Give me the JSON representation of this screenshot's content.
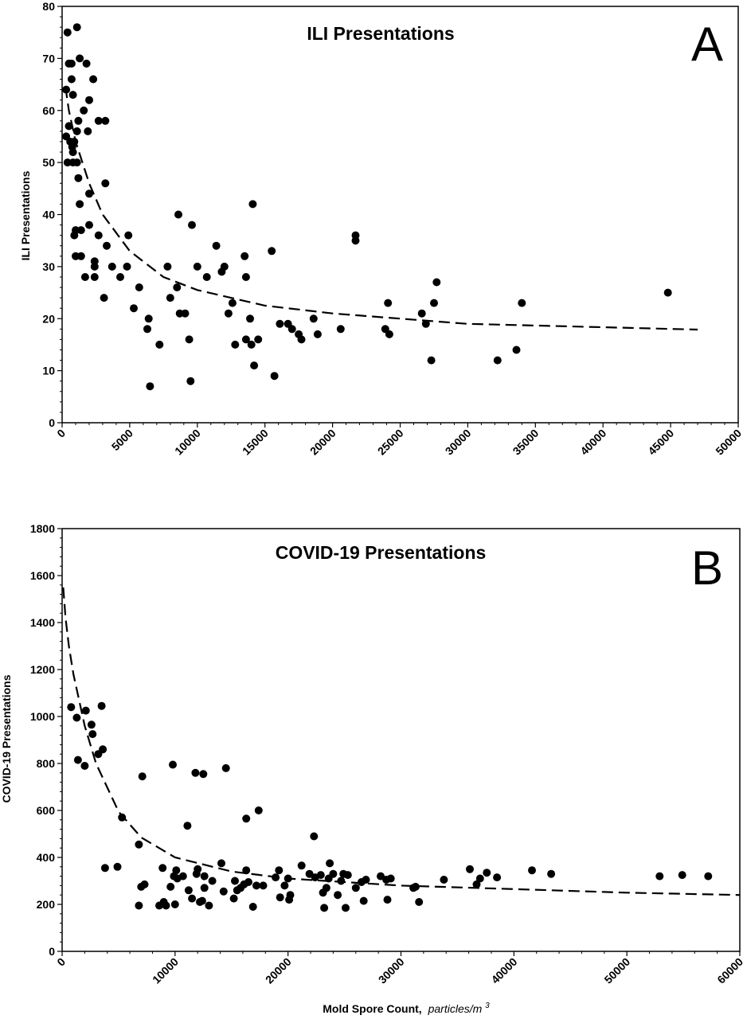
{
  "chart_data": [
    {
      "type": "scatter",
      "panel_letter": "A",
      "title": "ILI Presentations",
      "xlabel": "",
      "ylabel": "ILI Presentations",
      "xlim": [
        0,
        50000
      ],
      "ylim": [
        0,
        80
      ],
      "xticks": [
        0,
        5000,
        10000,
        15000,
        20000,
        25000,
        30000,
        35000,
        40000,
        45000,
        50000
      ],
      "yticks": [
        0,
        10,
        20,
        30,
        40,
        50,
        60,
        70,
        80
      ],
      "grid": false,
      "fit_line": {
        "style": "dashed",
        "x": [
          250,
          500,
          1000,
          2000,
          3000,
          5000,
          7500,
          10000,
          15000,
          20000,
          30000,
          47000
        ],
        "y": [
          64.5,
          60,
          54,
          46,
          40,
          33,
          28,
          25.5,
          22.5,
          21,
          19,
          17.9
        ]
      },
      "points": [
        [
          300,
          64
        ],
        [
          300,
          55
        ],
        [
          400,
          75
        ],
        [
          500,
          69
        ],
        [
          600,
          54
        ],
        [
          400,
          50
        ],
        [
          500,
          57
        ],
        [
          700,
          66
        ],
        [
          700,
          69
        ],
        [
          800,
          63
        ],
        [
          750,
          53
        ],
        [
          800,
          52
        ],
        [
          900,
          54
        ],
        [
          800,
          50
        ],
        [
          900,
          36
        ],
        [
          1000,
          37
        ],
        [
          1000,
          32
        ],
        [
          1100,
          56
        ],
        [
          1100,
          50
        ],
        [
          1100,
          76
        ],
        [
          1200,
          58
        ],
        [
          1300,
          70
        ],
        [
          1200,
          47
        ],
        [
          1300,
          42
        ],
        [
          1400,
          37
        ],
        [
          1400,
          32
        ],
        [
          1600,
          60
        ],
        [
          1800,
          69
        ],
        [
          1900,
          56
        ],
        [
          2000,
          62
        ],
        [
          2000,
          44
        ],
        [
          2000,
          38
        ],
        [
          1700,
          28
        ],
        [
          2300,
          66
        ],
        [
          2400,
          31
        ],
        [
          2400,
          30
        ],
        [
          2400,
          28
        ],
        [
          2700,
          58
        ],
        [
          2700,
          36
        ],
        [
          3200,
          58
        ],
        [
          3200,
          46
        ],
        [
          3300,
          34
        ],
        [
          3100,
          24
        ],
        [
          3700,
          30
        ],
        [
          4300,
          28
        ],
        [
          4800,
          30
        ],
        [
          4900,
          36
        ],
        [
          5300,
          22
        ],
        [
          5700,
          26
        ],
        [
          6300,
          18
        ],
        [
          6400,
          20
        ],
        [
          6500,
          7
        ],
        [
          7200,
          15
        ],
        [
          7800,
          30
        ],
        [
          8000,
          24
        ],
        [
          8500,
          26
        ],
        [
          8600,
          40
        ],
        [
          8700,
          21
        ],
        [
          9100,
          21
        ],
        [
          9400,
          16
        ],
        [
          9500,
          8
        ],
        [
          9600,
          38
        ],
        [
          10000,
          30
        ],
        [
          10700,
          28
        ],
        [
          11400,
          34
        ],
        [
          11800,
          29
        ],
        [
          12000,
          30
        ],
        [
          12300,
          21
        ],
        [
          12600,
          23
        ],
        [
          12800,
          15
        ],
        [
          13500,
          32
        ],
        [
          13600,
          16
        ],
        [
          13600,
          28
        ],
        [
          13900,
          20
        ],
        [
          14000,
          15
        ],
        [
          14100,
          42
        ],
        [
          14200,
          11
        ],
        [
          14500,
          16
        ],
        [
          15500,
          33
        ],
        [
          15700,
          9
        ],
        [
          16100,
          19
        ],
        [
          16700,
          19
        ],
        [
          17000,
          18
        ],
        [
          17500,
          17
        ],
        [
          17700,
          16
        ],
        [
          18600,
          20
        ],
        [
          18900,
          17
        ],
        [
          20600,
          18
        ],
        [
          21700,
          36
        ],
        [
          21700,
          35
        ],
        [
          23900,
          18
        ],
        [
          24100,
          23
        ],
        [
          24200,
          17
        ],
        [
          26600,
          21
        ],
        [
          26900,
          19
        ],
        [
          27300,
          12
        ],
        [
          27500,
          23
        ],
        [
          27700,
          27
        ],
        [
          32200,
          12
        ],
        [
          33600,
          14
        ],
        [
          34000,
          23
        ],
        [
          44800,
          25
        ]
      ]
    },
    {
      "type": "scatter",
      "panel_letter": "B",
      "title": "COVID-19 Presentations",
      "xlabel": "Mold Spore Count,",
      "xlabel_unit": "particles/m",
      "xlabel_unit_sup": "3",
      "ylabel": "COVID-19 Presentations",
      "xlim": [
        0,
        60000
      ],
      "ylim": [
        0,
        1800
      ],
      "xticks": [
        0,
        10000,
        20000,
        30000,
        40000,
        50000,
        60000
      ],
      "yticks": [
        0,
        200,
        400,
        600,
        800,
        1000,
        1200,
        1400,
        1600,
        1800
      ],
      "grid": false,
      "fit_line": {
        "style": "dashed",
        "x": [
          100,
          300,
          600,
          1000,
          2000,
          3000,
          5000,
          7000,
          10000,
          15000,
          20000,
          30000,
          40000,
          50000,
          60000
        ],
        "y": [
          1550,
          1420,
          1300,
          1180,
          960,
          800,
          595,
          485,
          400,
          340,
          310,
          280,
          265,
          250,
          240
        ]
      },
      "points": [
        [
          800,
          1040
        ],
        [
          1300,
          995
        ],
        [
          1400,
          815
        ],
        [
          2000,
          790
        ],
        [
          2100,
          1025
        ],
        [
          2600,
          965
        ],
        [
          2700,
          925
        ],
        [
          3200,
          840
        ],
        [
          3500,
          1045
        ],
        [
          3600,
          860
        ],
        [
          3800,
          355
        ],
        [
          4900,
          360
        ],
        [
          5300,
          570
        ],
        [
          6800,
          455
        ],
        [
          6800,
          195
        ],
        [
          7000,
          275
        ],
        [
          7100,
          745
        ],
        [
          7300,
          285
        ],
        [
          8600,
          195
        ],
        [
          8900,
          355
        ],
        [
          9000,
          210
        ],
        [
          9200,
          195
        ],
        [
          9600,
          275
        ],
        [
          9800,
          795
        ],
        [
          9900,
          320
        ],
        [
          10000,
          200
        ],
        [
          10100,
          345
        ],
        [
          10200,
          310
        ],
        [
          10700,
          320
        ],
        [
          11100,
          535
        ],
        [
          11200,
          260
        ],
        [
          11500,
          225
        ],
        [
          11800,
          760
        ],
        [
          11900,
          330
        ],
        [
          12000,
          350
        ],
        [
          12200,
          210
        ],
        [
          12500,
          755
        ],
        [
          12600,
          270
        ],
        [
          12600,
          320
        ],
        [
          12400,
          215
        ],
        [
          13000,
          195
        ],
        [
          13300,
          300
        ],
        [
          14100,
          375
        ],
        [
          14300,
          255
        ],
        [
          14500,
          780
        ],
        [
          15200,
          225
        ],
        [
          15300,
          300
        ],
        [
          15500,
          260
        ],
        [
          15800,
          270
        ],
        [
          16100,
          285
        ],
        [
          16300,
          345
        ],
        [
          16300,
          565
        ],
        [
          16500,
          295
        ],
        [
          16900,
          190
        ],
        [
          17200,
          280
        ],
        [
          17400,
          600
        ],
        [
          17800,
          280
        ],
        [
          18900,
          315
        ],
        [
          19200,
          345
        ],
        [
          19300,
          230
        ],
        [
          19700,
          280
        ],
        [
          20000,
          310
        ],
        [
          20200,
          240
        ],
        [
          20100,
          220
        ],
        [
          21200,
          365
        ],
        [
          21900,
          330
        ],
        [
          22300,
          490
        ],
        [
          22400,
          315
        ],
        [
          22900,
          325
        ],
        [
          23100,
          250
        ],
        [
          23200,
          185
        ],
        [
          23400,
          270
        ],
        [
          23600,
          310
        ],
        [
          23700,
          375
        ],
        [
          24000,
          330
        ],
        [
          24400,
          240
        ],
        [
          24700,
          300
        ],
        [
          24900,
          330
        ],
        [
          25100,
          185
        ],
        [
          25300,
          325
        ],
        [
          26000,
          270
        ],
        [
          26500,
          295
        ],
        [
          26700,
          215
        ],
        [
          26900,
          305
        ],
        [
          28200,
          320
        ],
        [
          28800,
          220
        ],
        [
          28700,
          305
        ],
        [
          29100,
          310
        ],
        [
          31100,
          270
        ],
        [
          31300,
          275
        ],
        [
          31600,
          210
        ],
        [
          33800,
          305
        ],
        [
          36100,
          350
        ],
        [
          36700,
          285
        ],
        [
          37000,
          310
        ],
        [
          37600,
          335
        ],
        [
          38500,
          315
        ],
        [
          41600,
          345
        ],
        [
          43300,
          330
        ],
        [
          52900,
          320
        ],
        [
          54900,
          325
        ],
        [
          57200,
          320
        ]
      ]
    }
  ]
}
